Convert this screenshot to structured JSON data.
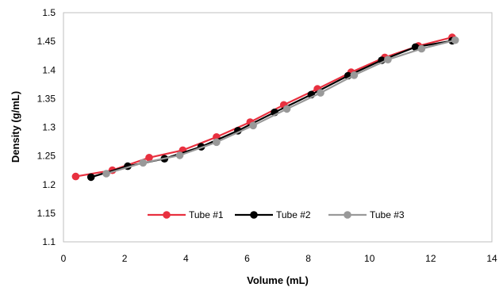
{
  "chart_data": {
    "type": "line",
    "xlabel": "Volume (mL)",
    "ylabel": "Density (g/mL)",
    "xlim": [
      0,
      14
    ],
    "ylim": [
      1.1,
      1.5
    ],
    "xticks": [
      0,
      2,
      4,
      6,
      8,
      10,
      12,
      14
    ],
    "yticks": [
      1.1,
      1.15,
      1.2,
      1.25,
      1.3,
      1.35,
      1.4,
      1.45,
      1.5
    ],
    "xtick_labels": [
      "0",
      "2",
      "4",
      "6",
      "8",
      "10",
      "12",
      "14"
    ],
    "ytick_labels": [
      "1.1",
      "1.15",
      "1.2",
      "1.25",
      "1.3",
      "1.35",
      "1.4",
      "1.45",
      "1.5"
    ],
    "grid": false,
    "legend_position": "bottom-center inside plot",
    "series": [
      {
        "name": "Tube #1",
        "color": "#e8303f",
        "points": [
          [
            0.4,
            1.214
          ],
          [
            1.6,
            1.225
          ],
          [
            2.8,
            1.247
          ],
          [
            3.9,
            1.26
          ],
          [
            5.0,
            1.283
          ],
          [
            6.1,
            1.309
          ],
          [
            7.2,
            1.339
          ],
          [
            8.3,
            1.367
          ],
          [
            9.4,
            1.396
          ],
          [
            10.5,
            1.422
          ],
          [
            11.6,
            1.442
          ],
          [
            12.7,
            1.457
          ]
        ]
      },
      {
        "name": "Tube #2",
        "color": "#000000",
        "points": [
          [
            0.9,
            1.213
          ],
          [
            2.1,
            1.232
          ],
          [
            3.3,
            1.245
          ],
          [
            4.5,
            1.266
          ],
          [
            5.7,
            1.294
          ],
          [
            6.9,
            1.326
          ],
          [
            8.1,
            1.357
          ],
          [
            9.3,
            1.39
          ],
          [
            10.4,
            1.417
          ],
          [
            11.5,
            1.44
          ],
          [
            12.7,
            1.451
          ]
        ]
      },
      {
        "name": "Tube #3",
        "color": "#999999",
        "points": [
          [
            1.4,
            1.219
          ],
          [
            2.6,
            1.238
          ],
          [
            3.8,
            1.251
          ],
          [
            5.0,
            1.274
          ],
          [
            6.2,
            1.303
          ],
          [
            7.3,
            1.332
          ],
          [
            8.4,
            1.36
          ],
          [
            9.5,
            1.391
          ],
          [
            10.6,
            1.418
          ],
          [
            11.7,
            1.437
          ],
          [
            12.8,
            1.452
          ]
        ]
      }
    ]
  }
}
